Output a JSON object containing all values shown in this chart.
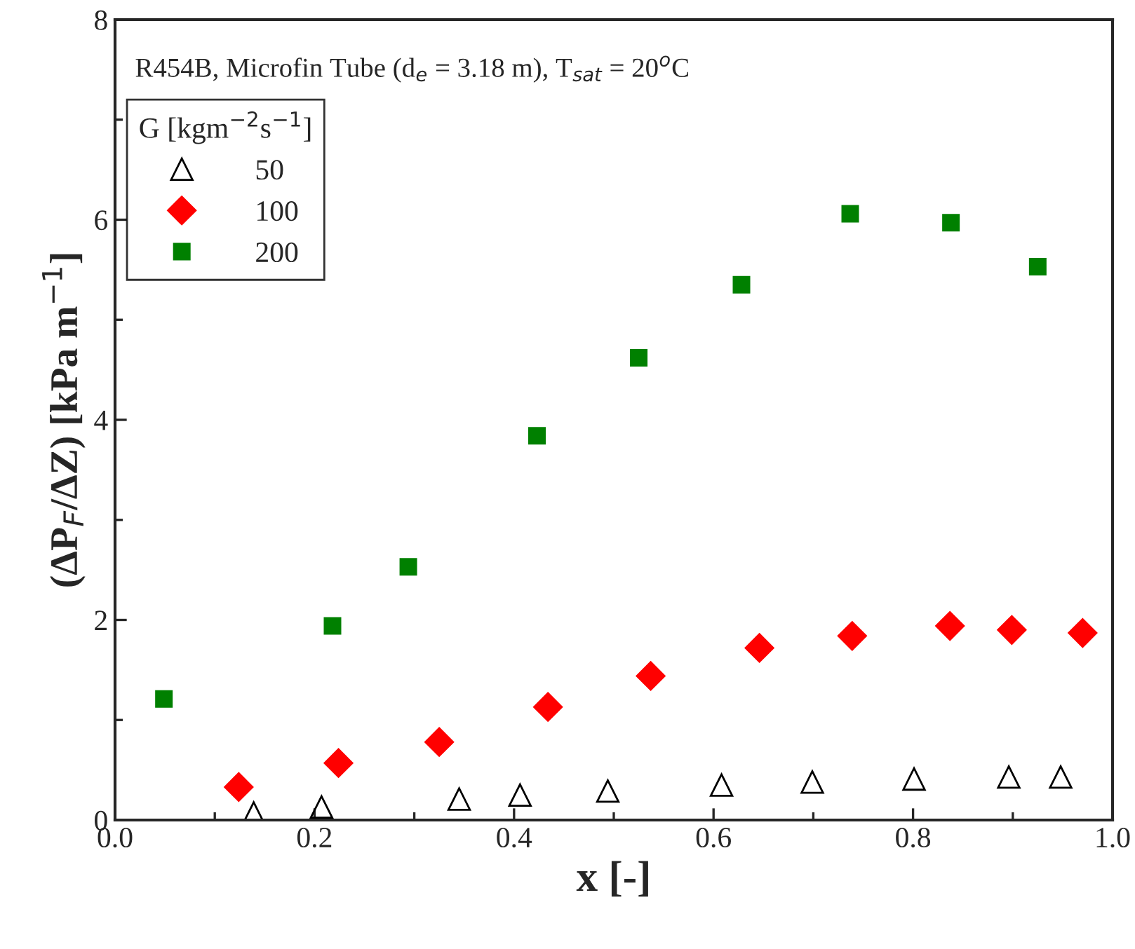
{
  "chart_data": {
    "type": "scatter",
    "xlabel": "x [-]",
    "ylabel": "(ΔP$_{F}$/ΔZ) [kPa m$^{−1}$]",
    "annotations": [
      "R454B, Microfin Tube (d$_{e}$ = 3.18 m), T$_{sat}$ = 20$^{o}$C"
    ],
    "legend_title": "G [kgm$^{−2}$s$^{−1}$]",
    "legend": "top left",
    "xlim": [
      0,
      1
    ],
    "xticks": [
      {
        "value": 0,
        "label": "0.0"
      },
      {
        "value": 0.2,
        "label": "0.2"
      },
      {
        "value": 0.4,
        "label": "0.4"
      },
      {
        "value": 0.6,
        "label": "0.6"
      },
      {
        "value": 0.8,
        "label": "0.8"
      },
      {
        "value": 1,
        "label": "1.0"
      }
    ],
    "ylim": [
      0,
      8
    ],
    "yticks": [
      0,
      2,
      4,
      6,
      8
    ],
    "grid": false,
    "series": [
      {
        "name": "50",
        "color": "#000000",
        "marker": "triangle",
        "x": [
          0.139,
          0.207,
          0.345,
          0.406,
          0.494,
          0.608,
          0.699,
          0.801,
          0.896,
          0.948
        ],
        "values": [
          0.07,
          0.13,
          0.21,
          0.25,
          0.29,
          0.35,
          0.38,
          0.41,
          0.43,
          0.43
        ]
      },
      {
        "name": "100",
        "color": "#ff0000",
        "marker": "diamond",
        "x": [
          0.124,
          0.224,
          0.325,
          0.434,
          0.537,
          0.646,
          0.739,
          0.837,
          0.899,
          0.97
        ],
        "values": [
          0.33,
          0.57,
          0.78,
          1.13,
          1.44,
          1.72,
          1.84,
          1.94,
          1.9,
          1.87
        ]
      },
      {
        "name": "200",
        "color": "#008000",
        "marker": "square",
        "x": [
          0.049,
          0.218,
          0.294,
          0.423,
          0.525,
          0.628,
          0.737,
          0.838,
          0.925
        ],
        "values": [
          1.21,
          1.94,
          2.53,
          3.84,
          4.62,
          5.35,
          6.06,
          5.97,
          5.53
        ]
      }
    ]
  }
}
